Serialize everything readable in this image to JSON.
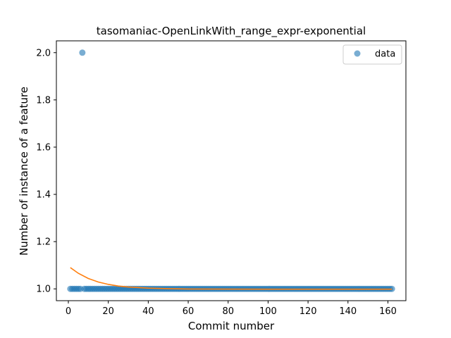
{
  "chart_data": {
    "type": "scatter",
    "title": "tasomaniac-OpenLinkWith_range_expr-exponential",
    "xlabel": "Commit number",
    "ylabel": "Number of instance of a feature",
    "xlim": [
      -6,
      169
    ],
    "ylim": [
      0.95,
      2.05
    ],
    "xticks": [
      0,
      20,
      40,
      60,
      80,
      100,
      120,
      140,
      160
    ],
    "yticks": [
      1.0,
      1.2,
      1.4,
      1.6,
      1.8,
      2.0
    ],
    "ytick_labels": [
      "1.0",
      "1.2",
      "1.4",
      "1.6",
      "1.8",
      "2.0"
    ],
    "legend": {
      "position": "upper right",
      "entries": [
        "data"
      ]
    },
    "colors": {
      "data": "#1f77b4",
      "fit": "#ff7f0e"
    },
    "series": [
      {
        "name": "data",
        "kind": "scatter",
        "x_range": [
          1,
          162
        ],
        "y_default": 1.0,
        "outliers": [
          {
            "x": 7,
            "y": 2.0
          }
        ]
      },
      {
        "kind": "line",
        "model": "exponential",
        "x_range": [
          1,
          162
        ],
        "points": [
          [
            1,
            1.09
          ],
          [
            5,
            1.066
          ],
          [
            10,
            1.044
          ],
          [
            15,
            1.029
          ],
          [
            20,
            1.019
          ],
          [
            25,
            1.012
          ],
          [
            30,
            1.008
          ],
          [
            40,
            1.003
          ],
          [
            50,
            1.001
          ],
          [
            60,
            0.9995
          ],
          [
            80,
            0.999
          ],
          [
            100,
            0.9985
          ],
          [
            120,
            0.9985
          ],
          [
            140,
            0.9985
          ],
          [
            162,
            0.9985
          ]
        ]
      }
    ]
  }
}
